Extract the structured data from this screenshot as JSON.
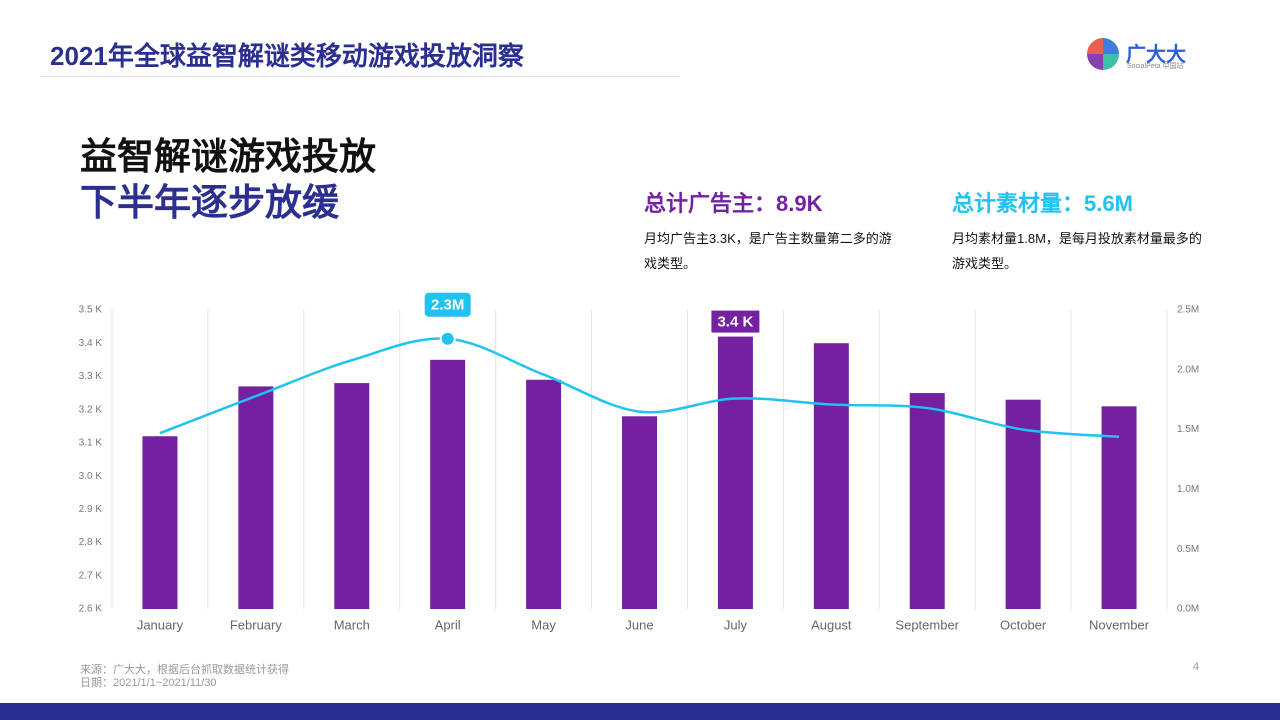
{
  "slide": {
    "header": "2021年全球益智解谜类移动游戏投放洞察",
    "logo_name": "广大大",
    "logo_sub": "SocialPeta 中国站",
    "headline": [
      "益智解谜游戏投放",
      "下半年逐步放缓"
    ],
    "stats": [
      {
        "title": "总计广告主：8.9K",
        "desc": "月均广告主3.3K，是广告主数量第二多的游戏类型。"
      },
      {
        "title": "总计素材量：5.6M",
        "desc": "月均素材量1.8M，是每月投放素材量最多的游戏类型。"
      }
    ],
    "source": "来源：广大大，根据后台抓取数据统计获得",
    "date": "日期：2021/1/1~2021/11/30",
    "page": "4"
  },
  "chart_data": {
    "type": "bar",
    "categories": [
      "January",
      "February",
      "March",
      "April",
      "May",
      "June",
      "July",
      "August",
      "September",
      "October",
      "November"
    ],
    "series": [
      {
        "type": "bar",
        "color": "#7321a0",
        "values": [
          3.12,
          3.27,
          3.28,
          3.35,
          3.29,
          3.18,
          3.42,
          3.4,
          3.25,
          3.23,
          3.21
        ],
        "value_labels": [
          null,
          null,
          null,
          null,
          null,
          null,
          "3.4 K",
          null,
          null,
          null,
          null
        ]
      },
      {
        "type": "line",
        "axis": "y2",
        "color": "#1fc3f0",
        "values": [
          1.47,
          1.78,
          2.08,
          2.26,
          1.96,
          1.65,
          1.76,
          1.71,
          1.68,
          1.5,
          1.44
        ],
        "value_labels": [
          null,
          null,
          null,
          "2.3M",
          null,
          null,
          null,
          null,
          null,
          null,
          null
        ]
      }
    ],
    "ylim": [
      2.6,
      3.5
    ],
    "yticks": [
      {
        "value": 2.6,
        "label": "2.6 K"
      },
      {
        "value": 2.7,
        "label": "2.7 K"
      },
      {
        "value": 2.8,
        "label": "2.8 K"
      },
      {
        "value": 2.9,
        "label": "2.9 K"
      },
      {
        "value": 3.0,
        "label": "3.0 K"
      },
      {
        "value": 3.1,
        "label": "3.1 K"
      },
      {
        "value": 3.2,
        "label": "3.2 K"
      },
      {
        "value": 3.3,
        "label": "3.3 K"
      },
      {
        "value": 3.4,
        "label": "3.4 K"
      },
      {
        "value": 3.5,
        "label": "3.5 K"
      }
    ],
    "y2lim": [
      0,
      2.5
    ],
    "y2ticks": [
      {
        "value": 0,
        "label": "0.0M"
      },
      {
        "value": 0.5,
        "label": "0.5M"
      },
      {
        "value": 1.0,
        "label": "1.0M"
      },
      {
        "value": 1.5,
        "label": "1.5M"
      },
      {
        "value": 2.0,
        "label": "2.0M"
      },
      {
        "value": 2.5,
        "label": "2.5M"
      }
    ]
  }
}
